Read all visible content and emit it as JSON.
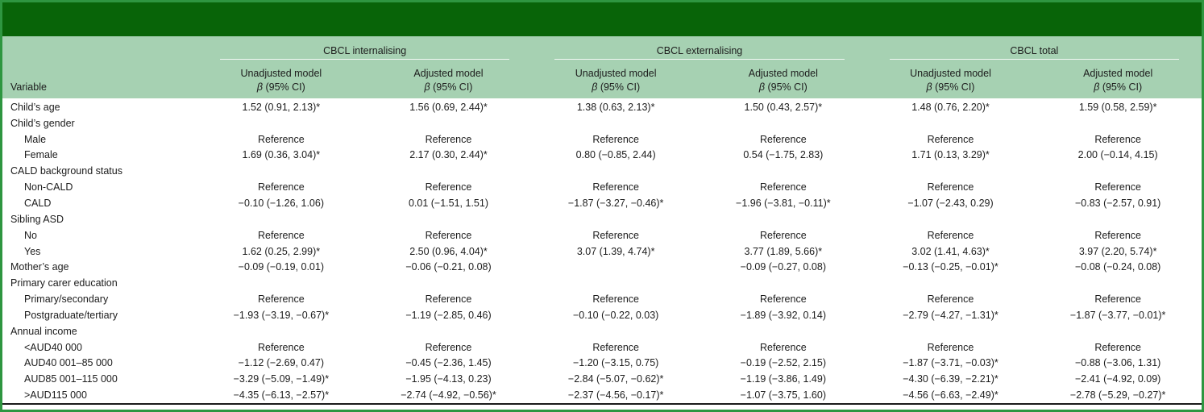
{
  "colors": {
    "top_bar": "#086408",
    "header_band": "#a6d1b2",
    "frame_border": "#2e9640",
    "body_rule": "#1a1a1a"
  },
  "header": {
    "variable_label": "Variable",
    "groups": [
      {
        "label": "CBCL internalising"
      },
      {
        "label": "CBCL externalising"
      },
      {
        "label": "CBCL total"
      }
    ],
    "model_columns": [
      "Unadjusted model",
      "Adjusted model",
      "Unadjusted model",
      "Adjusted model",
      "Unadjusted model",
      "Adjusted model"
    ],
    "beta_symbol": "β",
    "ci_suffix": " (95% CI)"
  },
  "table": {
    "rows": [
      {
        "label": "Child’s age",
        "indent": false,
        "values": [
          "1.52 (0.91, 2.13)*",
          "1.56 (0.69, 2.44)*",
          "1.38 (0.63, 2.13)*",
          "1.50 (0.43, 2.57)*",
          "1.48 (0.76, 2.20)*",
          "1.59 (0.58, 2.59)*"
        ]
      },
      {
        "label": "Child’s gender",
        "indent": false,
        "values": [
          "",
          "",
          "",
          "",
          "",
          ""
        ]
      },
      {
        "label": "Male",
        "indent": true,
        "values": [
          "Reference",
          "Reference",
          "Reference",
          "Reference",
          "Reference",
          "Reference"
        ]
      },
      {
        "label": "Female",
        "indent": true,
        "values": [
          "1.69 (0.36, 3.04)*",
          "2.17 (0.30, 2.44)*",
          "0.80 (−0.85, 2.44)",
          "0.54 (−1.75, 2.83)",
          "1.71 (0.13, 3.29)*",
          "2.00 (−0.14, 4.15)"
        ]
      },
      {
        "label": "CALD background status",
        "indent": false,
        "values": [
          "",
          "",
          "",
          "",
          "",
          ""
        ]
      },
      {
        "label": "Non-CALD",
        "indent": true,
        "values": [
          "Reference",
          "Reference",
          "Reference",
          "Reference",
          "Reference",
          "Reference"
        ]
      },
      {
        "label": "CALD",
        "indent": true,
        "values": [
          "−0.10 (−1.26, 1.06)",
          "0.01 (−1.51, 1.51)",
          "−1.87 (−3.27, −0.46)*",
          "−1.96 (−3.81, −0.11)*",
          "−1.07 (−2.43, 0.29)",
          "−0.83 (−2.57, 0.91)"
        ]
      },
      {
        "label": "Sibling ASD",
        "indent": false,
        "values": [
          "",
          "",
          "",
          "",
          "",
          ""
        ]
      },
      {
        "label": "No",
        "indent": true,
        "values": [
          "Reference",
          "Reference",
          "Reference",
          "Reference",
          "Reference",
          "Reference"
        ]
      },
      {
        "label": "Yes",
        "indent": true,
        "values": [
          "1.62 (0.25, 2.99)*",
          "2.50 (0.96, 4.04)*",
          "3.07 (1.39, 4.74)*",
          "3.77 (1.89, 5.66)*",
          "3.02 (1.41, 4.63)*",
          "3.97 (2.20, 5.74)*"
        ]
      },
      {
        "label": "Mother’s age",
        "indent": false,
        "values": [
          "−0.09 (−0.19, 0.01)",
          "−0.06 (−0.21, 0.08)",
          "",
          "−0.09 (−0.27, 0.08)",
          "−0.13 (−0.25, −0.01)*",
          "−0.08 (−0.24, 0.08)"
        ]
      },
      {
        "label": "Primary carer education",
        "indent": false,
        "values": [
          "",
          "",
          "",
          "",
          "",
          ""
        ]
      },
      {
        "label": "Primary/secondary",
        "indent": true,
        "values": [
          "Reference",
          "Reference",
          "Reference",
          "Reference",
          "Reference",
          "Reference"
        ]
      },
      {
        "label": "Postgraduate/tertiary",
        "indent": true,
        "values": [
          "−1.93 (−3.19, −0.67)*",
          "−1.19 (−2.85, 0.46)",
          "−0.10 (−0.22, 0.03)",
          "−1.89 (−3.92, 0.14)",
          "−2.79 (−4.27, −1.31)*",
          "−1.87 (−3.77, −0.01)*"
        ]
      },
      {
        "label": "Annual income",
        "indent": false,
        "values": [
          "",
          "",
          "",
          "",
          "",
          ""
        ]
      },
      {
        "label": "<AUD40 000",
        "indent": true,
        "values": [
          "Reference",
          "Reference",
          "Reference",
          "Reference",
          "Reference",
          "Reference"
        ]
      },
      {
        "label": "AUD40 001–85 000",
        "indent": true,
        "values": [
          "−1.12 (−2.69, 0.47)",
          "−0.45 (−2.36, 1.45)",
          "−1.20 (−3.15, 0.75)",
          "−0.19 (−2.52, 2.15)",
          "−1.87 (−3.71, −0.03)*",
          "−0.88 (−3.06, 1.31)"
        ]
      },
      {
        "label": "AUD85 001–115 000",
        "indent": true,
        "values": [
          "−3.29 (−5.09, −1.49)*",
          "−1.95 (−4.13, 0.23)",
          "−2.84 (−5.07, −0.62)*",
          "−1.19 (−3.86, 1.49)",
          "−4.30 (−6.39, −2.21)*",
          "−2.41 (−4.92, 0.09)"
        ]
      },
      {
        "label": ">AUD115 000",
        "indent": true,
        "values": [
          "−4.35 (−6.13, −2.57)*",
          "−2.74 (−4.92, −0.56)*",
          "−2.37 (−4.56, −0.17)*",
          "−1.07 (−3.75, 1.60)",
          "−4.56 (−6.63, −2.49)*",
          "−2.78 (−5.29, −0.27)*"
        ]
      }
    ]
  }
}
